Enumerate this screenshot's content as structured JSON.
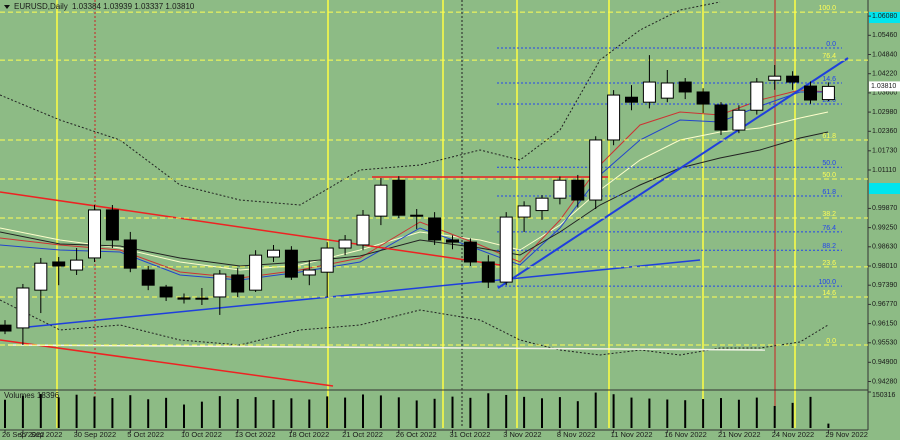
{
  "chart_data": {
    "type": "candlestick",
    "title": "EURUSD,Daily",
    "info": "1.03384 1.03939 1.03337 1.03810",
    "categories": [
      "26 Sep 2022",
      "27 Sep 2022",
      null,
      null,
      "30 Sep 2022",
      null,
      null,
      "5 Oct 2022",
      null,
      null,
      "10 Oct 2022",
      null,
      null,
      "13 Oct 2022",
      null,
      null,
      "18 Oct 2022",
      null,
      null,
      "21 Oct 2022",
      null,
      null,
      "26 Oct 2022",
      null,
      null,
      "31 Oct 2022",
      null,
      null,
      "3 Nov 2022",
      null,
      null,
      "8 Nov 2022",
      null,
      null,
      "11 Nov 2022",
      null,
      null,
      "16 Nov 2022",
      null,
      null,
      "21 Nov 2022",
      null,
      null,
      "24 Nov 2022",
      null,
      null,
      "29 Nov 2022"
    ],
    "open": [
      0.961,
      0.9601,
      0.9723,
      0.9814,
      0.9788,
      0.9827,
      0.9982,
      0.9885,
      0.9788,
      0.9733,
      0.9698,
      0.9694,
      0.9701,
      0.9772,
      0.9723,
      0.983,
      0.9852,
      0.9772,
      0.9781,
      0.9859,
      0.9869,
      0.9962,
      1.0078,
      0.9965,
      0.9956,
      0.9885,
      0.9878,
      0.9814,
      0.9749,
      0.9959,
      0.998,
      1.002,
      1.0078,
      1.0014,
      1.0208,
      1.0346,
      1.033,
      1.0343,
      1.0395,
      1.0363,
      1.0321,
      1.024,
      1.0304,
      1.0401,
      1.0414,
      1.0382,
      1.03384
    ],
    "high": [
      0.9626,
      0.9743,
      0.9827,
      0.983,
      0.9859,
      0.9998,
      0.9998,
      0.9911,
      0.9801,
      0.974,
      0.9712,
      0.973,
      0.9788,
      0.9794,
      0.9852,
      0.9869,
      0.9865,
      0.982,
      0.9878,
      0.9901,
      0.9982,
      1.0085,
      1.0091,
      0.9985,
      0.9975,
      0.99,
      0.989,
      0.9836,
      0.9975,
      1.001,
      1.003,
      1.009,
      1.0095,
      1.022,
      1.0369,
      1.0385,
      1.0482,
      1.0434,
      1.0408,
      1.0375,
      1.033,
      1.032,
      1.0408,
      1.045,
      1.043,
      1.0397,
      1.03939
    ],
    "low": [
      0.9581,
      0.9546,
      0.9649,
      0.9739,
      0.9772,
      0.9814,
      0.9859,
      0.9781,
      0.9723,
      0.9688,
      0.968,
      0.9675,
      0.9643,
      0.9701,
      0.9717,
      0.9814,
      0.9756,
      0.9739,
      0.9701,
      0.9836,
      0.9852,
      0.9933,
      0.9956,
      0.992,
      0.9869,
      0.9855,
      0.9801,
      0.973,
      0.9739,
      0.9911,
      0.995,
      1.0,
      0.999,
      0.9985,
      1.0191,
      1.0304,
      1.031,
      1.033,
      1.034,
      1.0295,
      1.0224,
      1.023,
      1.029,
      1.037,
      1.037,
      1.0325,
      1.03337
    ],
    "close": [
      0.9591,
      0.973,
      0.981,
      0.9801,
      0.982,
      0.9982,
      0.9885,
      0.9794,
      0.9739,
      0.9701,
      0.9694,
      0.9697,
      0.9775,
      0.9717,
      0.9836,
      0.9852,
      0.9765,
      0.9788,
      0.9859,
      0.9885,
      0.9965,
      1.0062,
      0.9965,
      0.9962,
      0.9885,
      0.9878,
      0.9814,
      0.9749,
      0.9959,
      0.9995,
      1.002,
      1.0078,
      1.0014,
      1.0208,
      1.0353,
      1.033,
      1.0395,
      1.0392,
      1.0363,
      1.0324,
      1.024,
      1.0304,
      1.0395,
      1.0414,
      1.0395,
      1.0337,
      1.0381
    ],
    "up_color": "#ffffff",
    "down_color": "#000000",
    "ylim": [
      0.9407,
      1.066
    ],
    "yticks": [
      {
        "value": 1.0608,
        "label": "1.06080"
      },
      {
        "value": 1.0546,
        "label": "1.05460"
      },
      {
        "value": 1.0484,
        "label": "1.04840"
      },
      {
        "value": 1.0422,
        "label": "1.04220"
      },
      {
        "value": 1.036,
        "label": "1.03600"
      },
      {
        "value": 1.0298,
        "label": "1.02980"
      },
      {
        "value": 1.0236,
        "label": "1.02360"
      },
      {
        "value": 1.0173,
        "label": "1.01730"
      },
      {
        "value": 1.0111,
        "label": "1.01110"
      },
      {
        "value": 0.9987,
        "label": "0.99870"
      },
      {
        "value": 0.9925,
        "label": "0.99250"
      },
      {
        "value": 0.9863,
        "label": "0.98630"
      },
      {
        "value": 0.9801,
        "label": "0.98010"
      },
      {
        "value": 0.9739,
        "label": "0.97390"
      },
      {
        "value": 0.9677,
        "label": "0.96770"
      },
      {
        "value": 0.9615,
        "label": "0.96150"
      },
      {
        "value": 0.9553,
        "label": "0.95530"
      },
      {
        "value": 0.949,
        "label": "0.94900"
      },
      {
        "value": 0.9428,
        "label": "0.94280"
      }
    ],
    "last_price": {
      "value": 1.0381,
      "label": "1.03810"
    },
    "fib_sets": [
      {
        "color": "#ffff55",
        "levels": [
          {
            "label": "100.0",
            "price": 1.0621
          },
          {
            "label": "76.4",
            "price": 1.0466
          },
          {
            "label": "61.8",
            "price": 1.0208
          },
          {
            "label": "50.0",
            "price": 1.0082
          },
          {
            "label": "38.2",
            "price": 0.9956
          },
          {
            "label": "23.6",
            "price": 0.9798
          },
          {
            "label": "14.6",
            "price": 0.9701
          },
          {
            "label": "0.0",
            "price": 0.9546
          }
        ]
      },
      {
        "color": "#2244ee",
        "levels": [
          {
            "label": "0.0",
            "price": 1.0505
          },
          {
            "label": "14.6",
            "price": 1.0392
          },
          {
            "label": "23.6",
            "price": 1.0324
          },
          {
            "label": "50.0",
            "price": 1.012
          },
          {
            "label": "61.8",
            "price": 1.0027
          },
          {
            "label": "76.4",
            "price": 0.9911
          },
          {
            "label": "88.2",
            "price": 0.9852
          },
          {
            "label": "100.0",
            "price": 0.9736
          }
        ]
      }
    ],
    "volume_label": "Volumes 18396",
    "volumes": [
      118000,
      135000,
      142000,
      128000,
      139000,
      131000,
      125000,
      137000,
      120000,
      126000,
      98000,
      110000,
      133000,
      121000,
      129000,
      117000,
      124000,
      119000,
      132000,
      127000,
      140000,
      136000,
      128000,
      115000,
      122000,
      131000,
      126000,
      145000,
      138000,
      130000,
      124000,
      129000,
      112000,
      148000,
      141000,
      127000,
      123000,
      119000,
      116000,
      121000,
      125000,
      118000,
      127000,
      92000,
      105000,
      130000,
      18396
    ],
    "vol_ylim": [
      0,
      150316
    ],
    "vol_yticks": [
      150316
    ]
  }
}
